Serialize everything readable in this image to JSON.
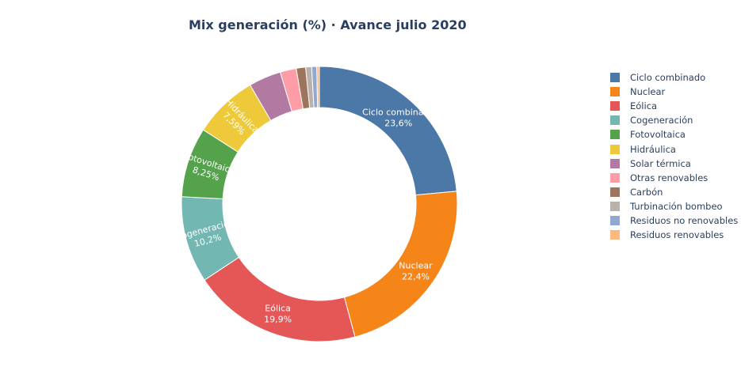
{
  "chart_data": {
    "type": "pie",
    "hole": true,
    "title": "Mix generación (%) · Avance julio 2020",
    "legend_position": "right",
    "slices": [
      {
        "label": "Ciclo combinado",
        "value": 23.6,
        "text": "23,6%",
        "color": "#4c78a8",
        "show_label": true
      },
      {
        "label": "Nuclear",
        "value": 22.4,
        "text": "22,4%",
        "color": "#f58518",
        "show_label": true
      },
      {
        "label": "Eólica",
        "value": 19.9,
        "text": "19,9%",
        "color": "#e45756",
        "show_label": true
      },
      {
        "label": "Cogeneración",
        "value": 10.2,
        "text": "10,2%",
        "color": "#72b7b2",
        "show_label": true
      },
      {
        "label": "Fotovoltaica",
        "value": 8.25,
        "text": "8,25%",
        "color": "#54a24b",
        "show_label": true
      },
      {
        "label": "Hidráulica",
        "value": 7.59,
        "text": "7,59%",
        "color": "#eeca3b",
        "show_label": true
      },
      {
        "label": "Solar térmica",
        "value": 3.8,
        "text": "",
        "color": "#b279a2",
        "show_label": false
      },
      {
        "label": "Otras renovables",
        "value": 1.9,
        "text": "",
        "color": "#ff9da6",
        "show_label": false
      },
      {
        "label": "Carbón",
        "value": 1.1,
        "text": "",
        "color": "#9d755d",
        "show_label": false
      },
      {
        "label": "Turbinación bombeo",
        "value": 0.7,
        "text": "",
        "color": "#bab0ac",
        "show_label": false
      },
      {
        "label": "Residuos no renovables",
        "value": 0.6,
        "text": "",
        "color": "#8fa9d1",
        "show_label": false
      },
      {
        "label": "Residuos renovables",
        "value": 0.3,
        "text": "",
        "color": "#fcb97d",
        "show_label": false
      }
    ]
  }
}
